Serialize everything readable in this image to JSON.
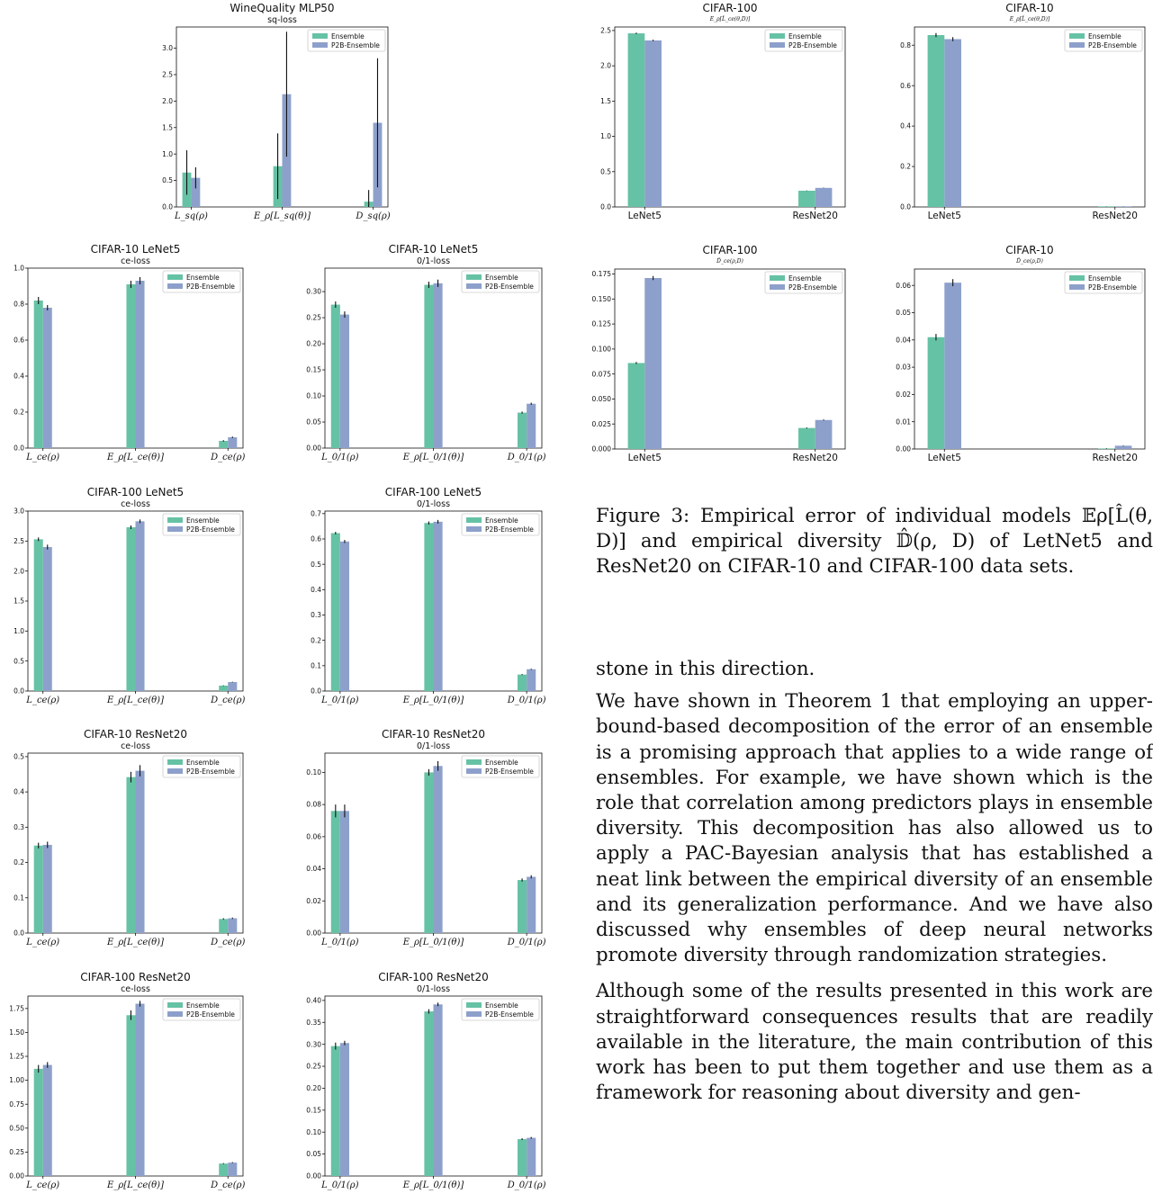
{
  "colors": {
    "ensemble": "#66c2a5",
    "p2b": "#8da0cb",
    "err": "#111111"
  },
  "legend": {
    "ensemble": "Ensemble",
    "p2b": "P2B-Ensemble"
  },
  "charts": [
    {
      "id": "wine",
      "title": "WineQuality MLP50",
      "subtitle": "sq-loss",
      "categories": [
        "L_sq(ρ)",
        "E_ρ[L_sq(θ)]",
        "D_sq(ρ)"
      ],
      "cat_style": "math",
      "ticks": [
        "0.0",
        "0.5",
        "1.0",
        "1.5",
        "2.0",
        "2.5",
        "3.0"
      ],
      "ylim": [
        0,
        3.4
      ],
      "series": [
        {
          "name": "Ensemble",
          "values": [
            0.65,
            0.77,
            0.1
          ],
          "errors": [
            0.42,
            0.62,
            0.22
          ]
        },
        {
          "name": "P2B-Ensemble",
          "values": [
            0.55,
            2.13,
            1.59
          ],
          "errors": [
            0.2,
            1.18,
            1.22
          ]
        }
      ]
    },
    {
      "id": "c10-lenet-ce",
      "title": "CIFAR-10 LeNet5",
      "subtitle": "ce-loss",
      "categories": [
        "L_ce(ρ)",
        "E_ρ[L_ce(θ)]",
        "D_ce(ρ)"
      ],
      "cat_style": "math",
      "ticks": [
        "0.0",
        "0.2",
        "0.4",
        "0.6",
        "0.8",
        "1.0"
      ],
      "ylim": [
        0,
        1.0
      ],
      "series": [
        {
          "name": "Ensemble",
          "values": [
            0.82,
            0.91,
            0.04
          ],
          "errors": [
            0.02,
            0.02,
            0.004
          ]
        },
        {
          "name": "P2B-Ensemble",
          "values": [
            0.78,
            0.93,
            0.06
          ],
          "errors": [
            0.015,
            0.02,
            0.004
          ]
        }
      ]
    },
    {
      "id": "c10-lenet-01",
      "title": "CIFAR-10 LeNet5",
      "subtitle": "0/1-loss",
      "categories": [
        "L_0/1(ρ)",
        "E_ρ[L_0/1(θ)]",
        "D_0/1(ρ)"
      ],
      "cat_style": "math",
      "ticks": [
        "0.00",
        "0.05",
        "0.10",
        "0.15",
        "0.20",
        "0.25",
        "0.30"
      ],
      "ylim": [
        0,
        0.345
      ],
      "series": [
        {
          "name": "Ensemble",
          "values": [
            0.275,
            0.313,
            0.068
          ],
          "errors": [
            0.006,
            0.006,
            0.002
          ]
        },
        {
          "name": "P2B-Ensemble",
          "values": [
            0.256,
            0.316,
            0.085
          ],
          "errors": [
            0.006,
            0.007,
            0.002
          ]
        }
      ]
    },
    {
      "id": "c100-lenet-ce",
      "title": "CIFAR-100 LeNet5",
      "subtitle": "ce-loss",
      "categories": [
        "L_ce(ρ)",
        "E_ρ[L_ce(θ)]",
        "D_ce(ρ)"
      ],
      "cat_style": "math",
      "ticks": [
        "0.0",
        "0.5",
        "1.0",
        "1.5",
        "2.0",
        "2.5",
        "3.0"
      ],
      "ylim": [
        0,
        3.0
      ],
      "series": [
        {
          "name": "Ensemble",
          "values": [
            2.53,
            2.73,
            0.09
          ],
          "errors": [
            0.03,
            0.03,
            0.005
          ]
        },
        {
          "name": "P2B-Ensemble",
          "values": [
            2.4,
            2.83,
            0.15
          ],
          "errors": [
            0.04,
            0.03,
            0.005
          ]
        }
      ]
    },
    {
      "id": "c100-lenet-01",
      "title": "CIFAR-100 LeNet5",
      "subtitle": "0/1-loss",
      "categories": [
        "L_0/1(ρ)",
        "E_ρ[L_0/1(θ)]",
        "D_0/1(ρ)"
      ],
      "cat_style": "math",
      "ticks": [
        "0.0",
        "0.1",
        "0.2",
        "0.3",
        "0.4",
        "0.5",
        "0.6",
        "0.7"
      ],
      "ylim": [
        0,
        0.71
      ],
      "series": [
        {
          "name": "Ensemble",
          "values": [
            0.623,
            0.663,
            0.065
          ],
          "errors": [
            0.005,
            0.006,
            0.002
          ]
        },
        {
          "name": "P2B-Ensemble",
          "values": [
            0.59,
            0.668,
            0.086
          ],
          "errors": [
            0.006,
            0.007,
            0.002
          ]
        }
      ]
    },
    {
      "id": "c10-resnet-ce",
      "title": "CIFAR-10 ResNet20",
      "subtitle": "ce-loss",
      "categories": [
        "L_ce(ρ)",
        "E_ρ[L_ce(θ)]",
        "D_ce(ρ)"
      ],
      "cat_style": "math",
      "ticks": [
        "0.0",
        "0.1",
        "0.2",
        "0.3",
        "0.4",
        "0.5"
      ],
      "ylim": [
        0,
        0.51
      ],
      "series": [
        {
          "name": "Ensemble",
          "values": [
            0.248,
            0.442,
            0.04
          ],
          "errors": [
            0.008,
            0.015,
            0.002
          ]
        },
        {
          "name": "P2B-Ensemble",
          "values": [
            0.25,
            0.46,
            0.042
          ],
          "errors": [
            0.009,
            0.016,
            0.002
          ]
        }
      ]
    },
    {
      "id": "c10-resnet-01",
      "title": "CIFAR-10 ResNet20",
      "subtitle": "0/1-loss",
      "categories": [
        "L_0/1(ρ)",
        "E_ρ[L_0/1(θ)]",
        "D_0/1(ρ)"
      ],
      "cat_style": "math",
      "ticks": [
        "0.00",
        "0.02",
        "0.04",
        "0.06",
        "0.08",
        "0.10"
      ],
      "ylim": [
        0,
        0.112
      ],
      "series": [
        {
          "name": "Ensemble",
          "values": [
            0.076,
            0.1,
            0.033
          ],
          "errors": [
            0.004,
            0.002,
            0.001
          ]
        },
        {
          "name": "P2B-Ensemble",
          "values": [
            0.076,
            0.104,
            0.035
          ],
          "errors": [
            0.004,
            0.003,
            0.001
          ]
        }
      ]
    },
    {
      "id": "c100-resnet-ce",
      "title": "CIFAR-100 ResNet20",
      "subtitle": "ce-loss",
      "categories": [
        "L_ce(ρ)",
        "E_ρ[L_ce(θ)]",
        "D_ce(ρ)"
      ],
      "cat_style": "math",
      "ticks": [
        "0.00",
        "0.25",
        "0.50",
        "0.75",
        "1.00",
        "1.25",
        "1.50",
        "1.75"
      ],
      "ylim": [
        0,
        1.88
      ],
      "series": [
        {
          "name": "Ensemble",
          "values": [
            1.12,
            1.68,
            0.13
          ],
          "errors": [
            0.04,
            0.05,
            0.005
          ]
        },
        {
          "name": "P2B-Ensemble",
          "values": [
            1.16,
            1.8,
            0.14
          ],
          "errors": [
            0.03,
            0.03,
            0.005
          ]
        }
      ]
    },
    {
      "id": "c100-resnet-01",
      "title": "CIFAR-100 ResNet20",
      "subtitle": "0/1-loss",
      "categories": [
        "L_0/1(ρ)",
        "E_ρ[L_0/1(θ)]",
        "D_0/1(ρ)"
      ],
      "cat_style": "math",
      "ticks": [
        "0.00",
        "0.05",
        "0.10",
        "0.15",
        "0.20",
        "0.25",
        "0.30",
        "0.35",
        "0.40"
      ],
      "ylim": [
        0,
        0.41
      ],
      "series": [
        {
          "name": "Ensemble",
          "values": [
            0.296,
            0.375,
            0.084
          ],
          "errors": [
            0.008,
            0.005,
            0.002
          ]
        },
        {
          "name": "P2B-Ensemble",
          "values": [
            0.303,
            0.391,
            0.087
          ],
          "errors": [
            0.005,
            0.004,
            0.002
          ]
        }
      ]
    },
    {
      "id": "r-c100-err",
      "title": "CIFAR-100",
      "subtitle": "E_ρ[L̂_ce(θ,D)]",
      "categories": [
        "LeNet5",
        "ResNet20"
      ],
      "cat_style": "plain",
      "ticks": [
        "0.0",
        "0.5",
        "1.0",
        "1.5",
        "2.0",
        "2.5"
      ],
      "ylim": [
        0,
        2.55
      ],
      "series": [
        {
          "name": "Ensemble",
          "values": [
            2.46,
            0.23
          ],
          "errors": [
            0.01,
            0.003
          ]
        },
        {
          "name": "P2B-Ensemble",
          "values": [
            2.36,
            0.27
          ],
          "errors": [
            0.01,
            0.003
          ]
        }
      ]
    },
    {
      "id": "r-c10-err",
      "title": "CIFAR-10",
      "subtitle": "E_ρ[L̂_ce(θ,D)]",
      "categories": [
        "LeNet5",
        "ResNet20"
      ],
      "cat_style": "plain",
      "ticks": [
        "0.0",
        "0.2",
        "0.4",
        "0.6",
        "0.8"
      ],
      "ylim": [
        0,
        0.89
      ],
      "series": [
        {
          "name": "Ensemble",
          "values": [
            0.85,
            0.003
          ],
          "errors": [
            0.01,
            0.0005
          ]
        },
        {
          "name": "P2B-Ensemble",
          "values": [
            0.83,
            0.003
          ],
          "errors": [
            0.01,
            0.0005
          ]
        }
      ]
    },
    {
      "id": "r-c100-div",
      "title": "CIFAR-100",
      "subtitle": "D̂_ce(ρ,D)",
      "categories": [
        "LeNet5",
        "ResNet20"
      ],
      "cat_style": "plain",
      "ticks": [
        "0.000",
        "0.025",
        "0.050",
        "0.075",
        "0.100",
        "0.125",
        "0.150",
        "0.175"
      ],
      "ylim": [
        0,
        0.18
      ],
      "series": [
        {
          "name": "Ensemble",
          "values": [
            0.086,
            0.021
          ],
          "errors": [
            0.001,
            0.0005
          ]
        },
        {
          "name": "P2B-Ensemble",
          "values": [
            0.171,
            0.029
          ],
          "errors": [
            0.002,
            0.0005
          ]
        }
      ]
    },
    {
      "id": "r-c10-div",
      "title": "CIFAR-10",
      "subtitle": "D̂_ce(ρ,D)",
      "categories": [
        "LeNet5",
        "ResNet20"
      ],
      "cat_style": "plain",
      "ticks": [
        "0.00",
        "0.01",
        "0.02",
        "0.03",
        "0.04",
        "0.05",
        "0.06"
      ],
      "ylim": [
        0,
        0.066
      ],
      "series": [
        {
          "name": "Ensemble",
          "values": [
            0.041,
            0.0002
          ],
          "errors": [
            0.0012,
            0.0001
          ]
        },
        {
          "name": "P2B-Ensemble",
          "values": [
            0.061,
            0.0012
          ],
          "errors": [
            0.0013,
            0.0001
          ]
        }
      ]
    }
  ],
  "caption": {
    "label": "Figure 3:",
    "text": "Empirical error of individual models 𝔼ρ[L̂(θ, D)] and empirical diversity 𝔻̂(ρ, D) of LetNet5 and ResNet20 on CIFAR-10 and CIFAR-100 data sets."
  },
  "body": {
    "p0": "stone in this direction.",
    "p1": "We have shown in Theorem 1 that employing an upper-bound-based decomposition of the error of an ensemble is a promising approach that applies to a wide range of ensembles. For example, we have shown which is the role that correlation among predictors plays in ensemble diversity. This decomposition has also allowed us to apply a PAC-Bayesian analysis that has established a neat link between the empirical diversity of an ensemble and its generalization performance. And we have also discussed why ensembles of deep neural networks promote diversity through randomization strategies.",
    "p2": "Although some of the results presented in this work are straightforward consequences results that are readily available in the literature, the main contribution of this work has been to put them together and use them as a framework for reasoning about diversity and gen-"
  }
}
